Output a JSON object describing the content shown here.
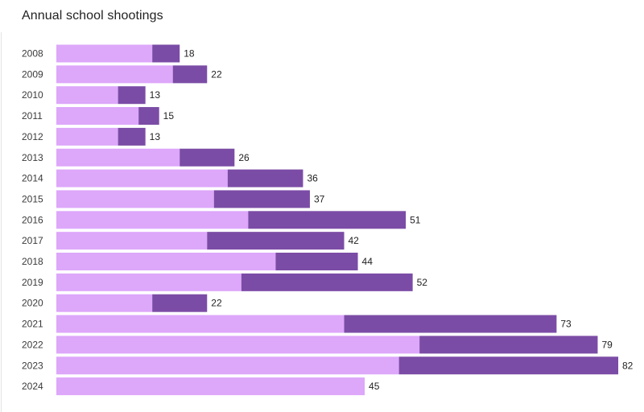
{
  "chart_data": {
    "type": "bar",
    "orientation": "horizontal",
    "stacked": true,
    "title": "Annual school shootings",
    "xlabel": "",
    "ylabel": "",
    "xlim": [
      0,
      82
    ],
    "grid": false,
    "legend": "none",
    "categories": [
      "2008",
      "2009",
      "2010",
      "2011",
      "2012",
      "2013",
      "2014",
      "2015",
      "2016",
      "2017",
      "2018",
      "2019",
      "2020",
      "2021",
      "2022",
      "2023",
      "2024"
    ],
    "series": [
      {
        "name": "light",
        "color": "#dda7fa",
        "values": [
          14,
          17,
          9,
          12,
          9,
          18,
          25,
          23,
          28,
          22,
          32,
          27,
          14,
          42,
          53,
          50,
          45
        ]
      },
      {
        "name": "dark",
        "color": "#7b4ca6",
        "values": [
          4,
          5,
          4,
          3,
          4,
          8,
          11,
          14,
          23,
          20,
          12,
          25,
          8,
          31,
          26,
          32,
          0
        ]
      }
    ],
    "totals": [
      18,
      22,
      13,
      15,
      13,
      26,
      36,
      37,
      51,
      42,
      44,
      52,
      22,
      73,
      79,
      82,
      45
    ]
  }
}
